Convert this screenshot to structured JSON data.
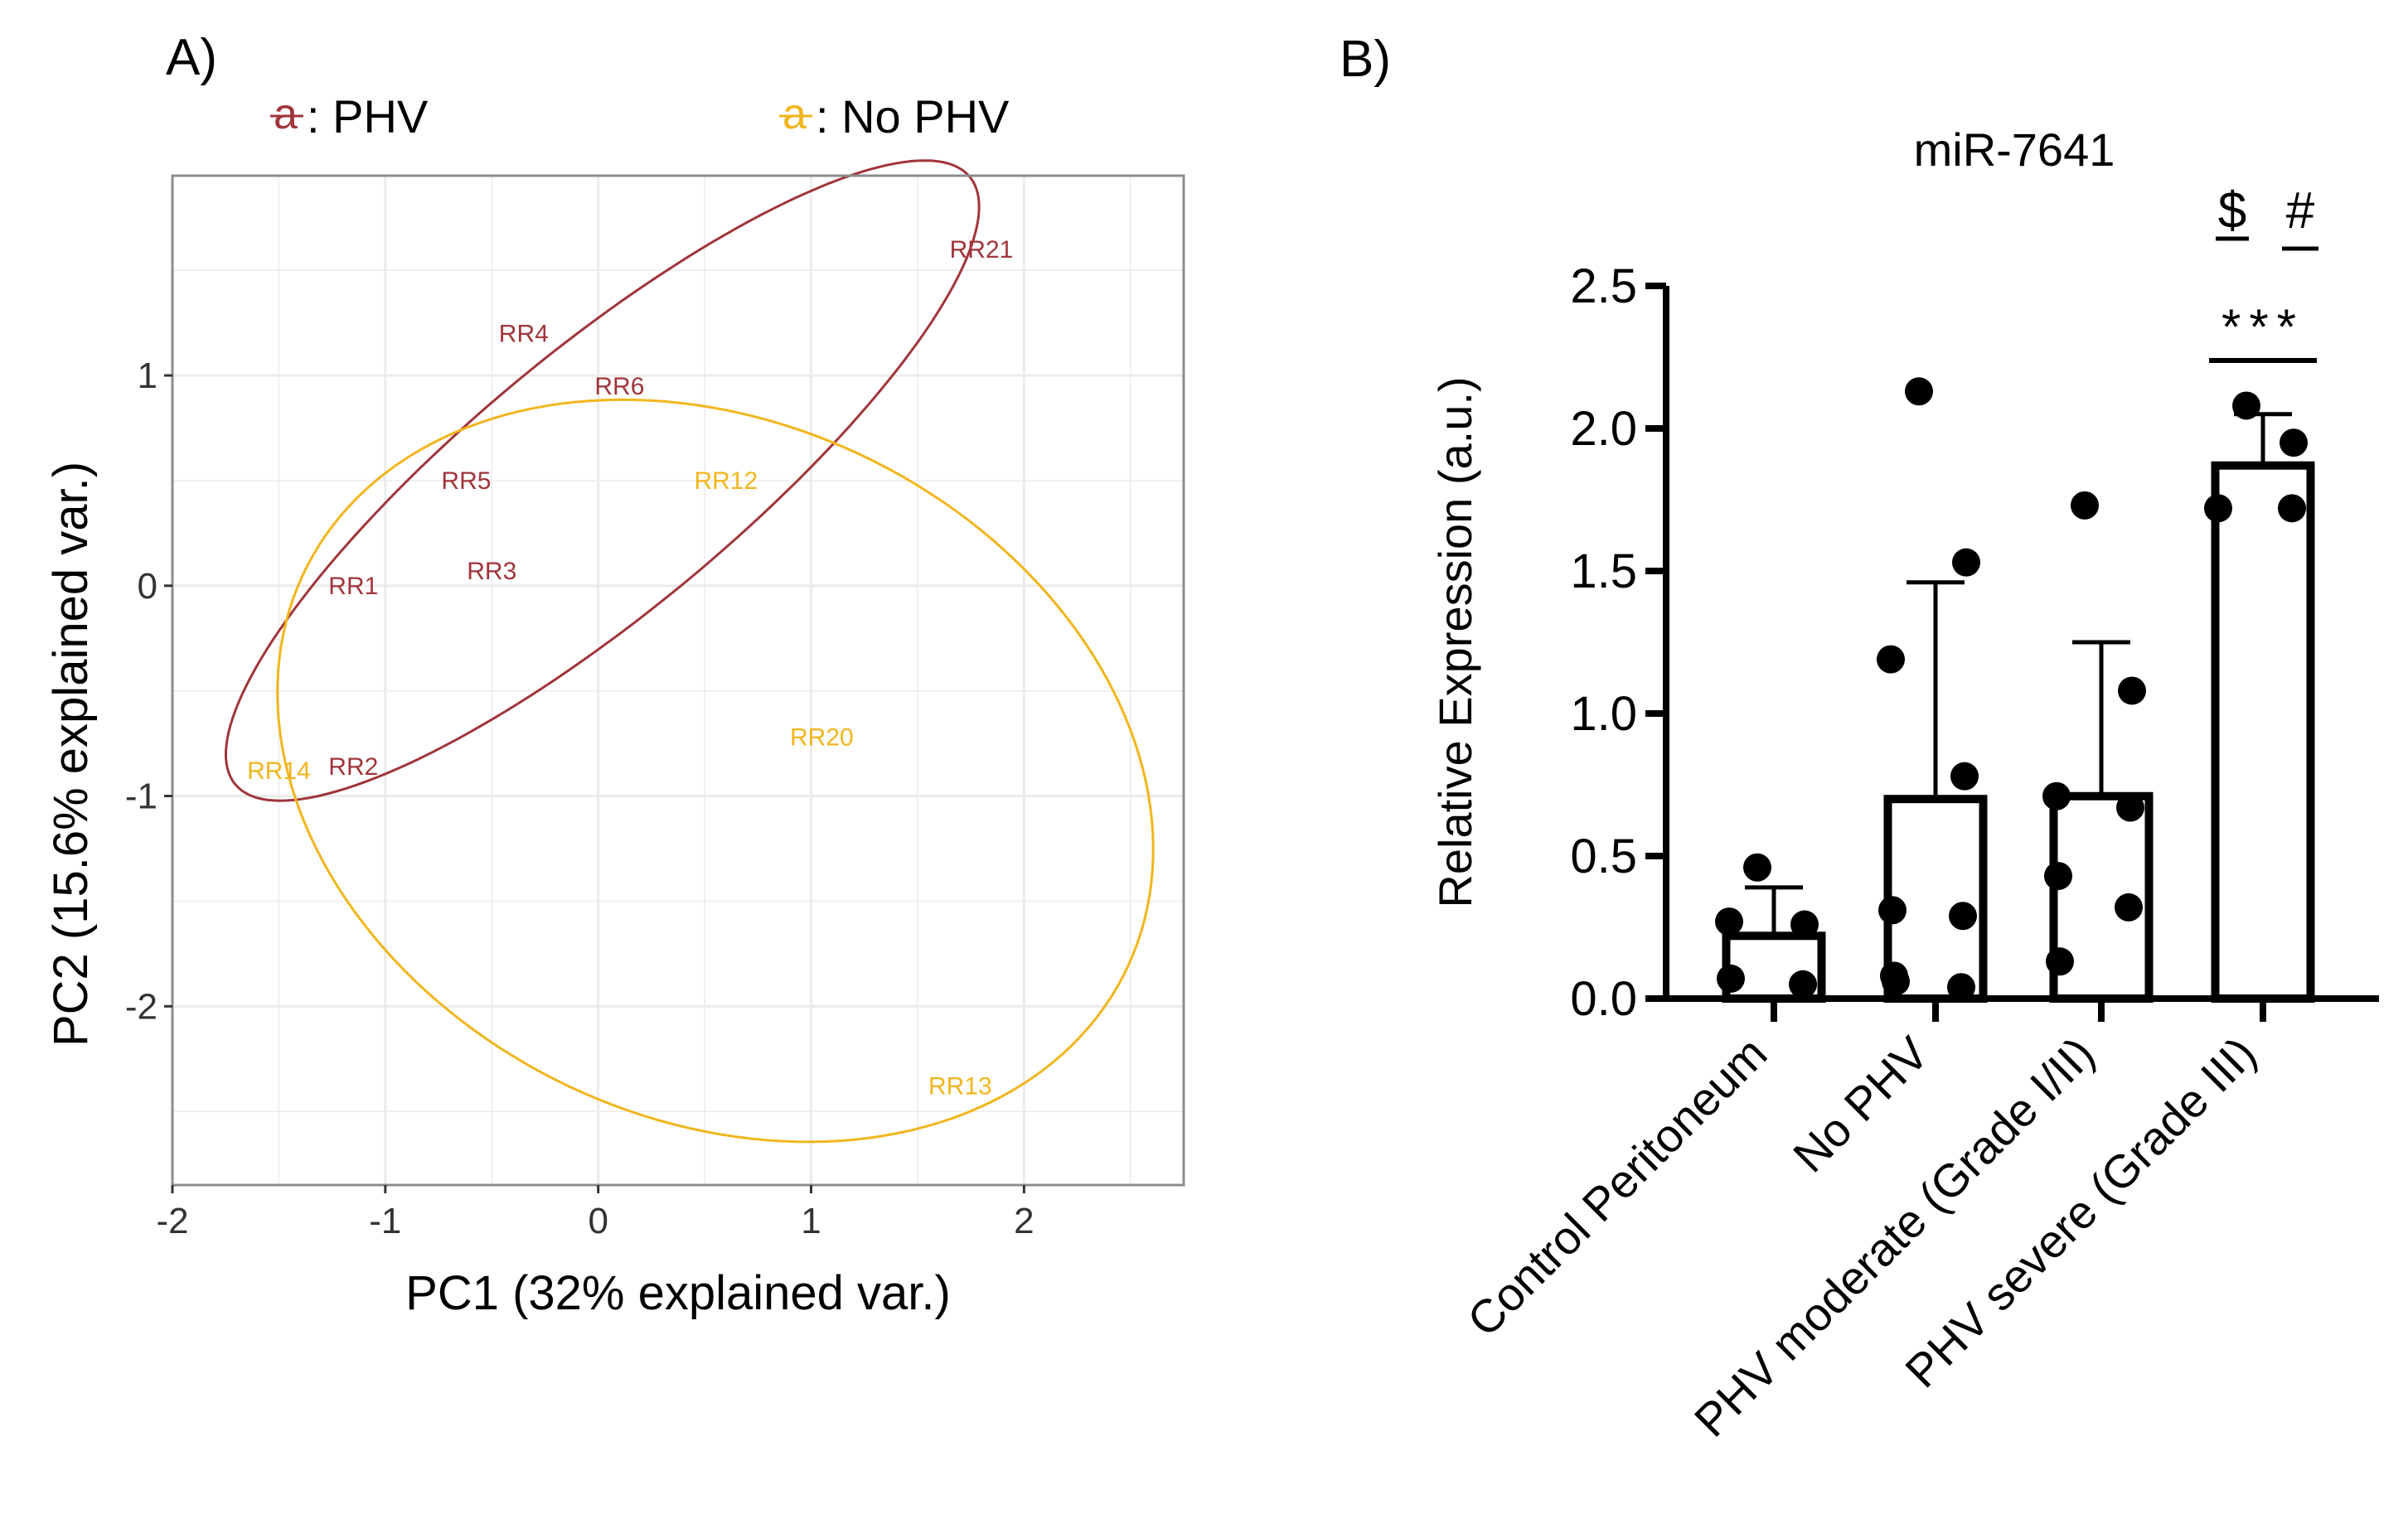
{
  "colors": {
    "phv": "#A0353B",
    "no_phv": "#F2B51C",
    "black": "#000000",
    "panel_border": "#8c8c8c",
    "grid": "#ebebeb"
  },
  "chart_data": [
    {
      "panel_label": "A)",
      "type": "scatter",
      "subtype": "PCA biplot with group ellipses",
      "title": "",
      "xlabel": "PC1 (32% explained var.)",
      "ylabel": "PC2 (15.6% explained var.)",
      "xlim": [
        -2.0,
        2.75
      ],
      "ylim": [
        -2.85,
        1.95
      ],
      "x_ticks": [
        -2,
        -1,
        0,
        1,
        2
      ],
      "x_tick_labels": [
        "-2",
        "-1",
        "0",
        "1",
        "2"
      ],
      "y_ticks": [
        -2,
        -1,
        0,
        1
      ],
      "y_tick_labels": [
        "-2",
        "-1",
        "0",
        "1"
      ],
      "grid": true,
      "legend_position": "top",
      "legend": [
        {
          "symbol": "a",
          "label": ": PHV",
          "group": "phv"
        },
        {
          "symbol": "a",
          "label": ": No PHV",
          "group": "no_phv"
        }
      ],
      "points": [
        {
          "label": "RR21",
          "x": 1.8,
          "y": 1.6,
          "group": "phv"
        },
        {
          "label": "RR4",
          "x": -0.35,
          "y": 1.2,
          "group": "phv"
        },
        {
          "label": "RR6",
          "x": 0.1,
          "y": 0.95,
          "group": "phv"
        },
        {
          "label": "RR5",
          "x": -0.62,
          "y": 0.5,
          "group": "phv"
        },
        {
          "label": "RR1",
          "x": -1.15,
          "y": 0.0,
          "group": "phv"
        },
        {
          "label": "RR3",
          "x": -0.5,
          "y": 0.07,
          "group": "phv"
        },
        {
          "label": "RR2",
          "x": -1.15,
          "y": -0.86,
          "group": "phv"
        },
        {
          "label": "RR12",
          "x": 0.6,
          "y": 0.5,
          "group": "no_phv"
        },
        {
          "label": "RR20",
          "x": 1.05,
          "y": -0.72,
          "group": "no_phv"
        },
        {
          "label": "RR14",
          "x": -1.5,
          "y": -0.88,
          "group": "no_phv"
        },
        {
          "label": "RR13",
          "x": 1.7,
          "y": -2.38,
          "group": "no_phv"
        }
      ],
      "ellipses": [
        {
          "group": "phv",
          "center": [
            0.02,
            0.5
          ],
          "semi_axes": [
            2.25,
            0.62
          ],
          "angle_deg": 40
        },
        {
          "group": "no_phv",
          "center": [
            0.55,
            -0.88
          ],
          "semi_axes": [
            2.15,
            1.65
          ],
          "angle_deg": -27
        }
      ]
    },
    {
      "panel_label": "B)",
      "type": "bar",
      "title": "miR-7641",
      "xlabel": "",
      "ylabel": "Relative Expression (a.u.)",
      "ylim": [
        0,
        2.5
      ],
      "y_ticks": [
        0.0,
        0.5,
        1.0,
        1.5,
        2.0,
        2.5
      ],
      "y_tick_labels": [
        "0.0",
        "0.5",
        "1.0",
        "1.5",
        "2.0",
        "2.5"
      ],
      "categories": [
        "Control Peritoneum",
        "No PHV",
        "PHV moderate (Grade I/II)",
        "PHV severe (Grade III)"
      ],
      "values": [
        0.22,
        0.7,
        0.71,
        1.87
      ],
      "error_upper": [
        0.39,
        1.46,
        1.25,
        2.05
      ],
      "points": [
        [
          0.46,
          0.26,
          0.27,
          0.05,
          0.07
        ],
        [
          2.13,
          1.53,
          1.19,
          0.78,
          0.31,
          0.29,
          0.08,
          0.04,
          0.06
        ],
        [
          1.73,
          1.08,
          0.71,
          0.67,
          0.43,
          0.32,
          0.13
        ],
        [
          2.08,
          1.95,
          1.72,
          1.72
        ]
      ],
      "significance": {
        "category": "PHV severe (Grade III)",
        "stars": "***",
        "symbols": [
          "$",
          "#"
        ]
      }
    }
  ]
}
